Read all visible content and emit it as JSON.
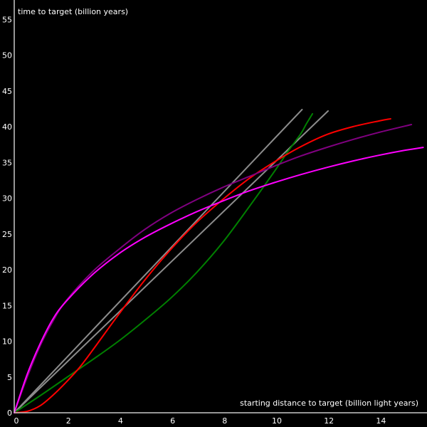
{
  "chart_data": {
    "type": "line",
    "title": "",
    "xlabel": "starting distance to target (billion light years)",
    "ylabel": "time to target (billion years)",
    "xlim": [
      0,
      15.7
    ],
    "ylim": [
      0,
      57.5
    ],
    "xticks": [
      "0",
      "2",
      "4",
      "6",
      "8",
      "10",
      "12",
      "14"
    ],
    "yticks": [
      "0",
      "5",
      "10",
      "15",
      "20",
      "25",
      "30",
      "35",
      "40",
      "45",
      "50",
      "55"
    ],
    "grid": false,
    "legend": "none",
    "axis_color": "#c8c8c8",
    "background": "#000000",
    "series": [
      {
        "color": "#8c8c8c",
        "x": [
          0,
          11.05
        ],
        "y": [
          0,
          42.4
        ]
      },
      {
        "color": "#8c8c8c",
        "x": [
          0,
          12.05
        ],
        "y": [
          0,
          42.2
        ]
      },
      {
        "color": "#008000",
        "x": [
          0,
          1,
          2,
          3,
          4,
          5,
          6,
          7,
          8,
          9,
          10,
          10.5,
          11,
          11.2,
          11.35,
          11.45
        ],
        "y": [
          0,
          2.4,
          4.9,
          7.4,
          10.0,
          12.9,
          16.0,
          19.6,
          23.8,
          28.7,
          33.8,
          36.5,
          39.0,
          40.3,
          41.2,
          41.8
        ]
      },
      {
        "color": "#ff0000",
        "x": [
          0,
          0.5,
          1,
          1.5,
          2,
          2.5,
          3,
          4,
          5,
          6,
          7,
          8,
          9,
          10,
          11,
          12,
          13,
          14,
          14.45
        ],
        "y": [
          0,
          0.2,
          1.0,
          2.5,
          4.3,
          6.3,
          8.7,
          13.7,
          18.5,
          22.8,
          26.6,
          29.8,
          32.7,
          35.1,
          37.2,
          38.9,
          40.0,
          40.8,
          41.1
        ]
      },
      {
        "color": "#800080",
        "x": [
          0,
          0.5,
          1,
          1.5,
          2,
          3,
          4,
          5,
          6,
          7,
          8,
          9,
          10,
          11,
          12,
          13,
          14,
          15.25
        ],
        "y": [
          0,
          5.0,
          9.4,
          12.9,
          15.7,
          19.7,
          22.8,
          25.6,
          27.9,
          29.8,
          31.5,
          33.0,
          34.5,
          35.9,
          37.1,
          38.2,
          39.2,
          40.3
        ]
      },
      {
        "color": "#ff00ff",
        "x": [
          0,
          0.5,
          1,
          1.5,
          2,
          3,
          4,
          5,
          6,
          7,
          8,
          9,
          10,
          11,
          12,
          13,
          14,
          15,
          15.7
        ],
        "y": [
          0,
          5.4,
          9.7,
          13.2,
          15.6,
          19.3,
          22.2,
          24.5,
          26.4,
          28.1,
          29.6,
          31.0,
          32.2,
          33.3,
          34.3,
          35.2,
          36.0,
          36.7,
          37.1
        ]
      }
    ]
  }
}
